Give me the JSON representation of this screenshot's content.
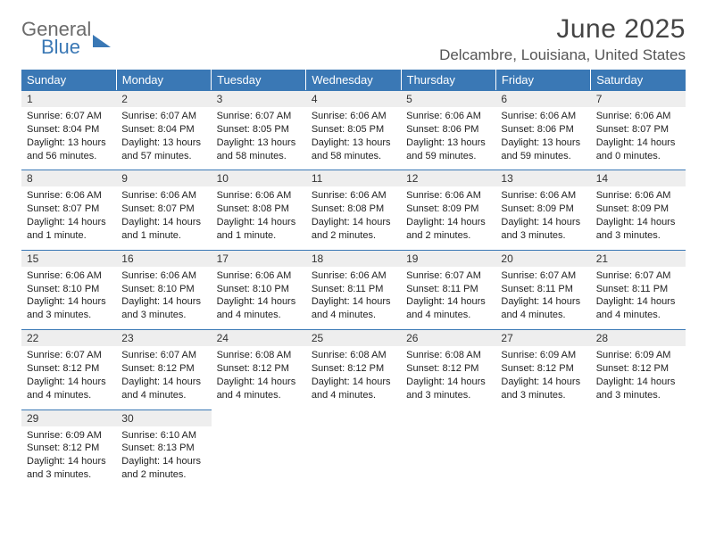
{
  "brand": {
    "line1": "General",
    "line2": "Blue"
  },
  "title": "June 2025",
  "location": "Delcambre, Louisiana, United States",
  "colors": {
    "header_bg": "#3a78b5",
    "header_text": "#ffffff",
    "daynum_bg": "#eeeeee",
    "daynum_border": "#3a78b5",
    "body_text": "#222222",
    "page_bg": "#ffffff",
    "logo_gray": "#6b6b6b",
    "logo_blue": "#3a78b5"
  },
  "layout": {
    "type": "table",
    "cols": 7,
    "rows": 5,
    "header_fontsize": 13,
    "daynum_fontsize": 12,
    "body_fontsize": 11,
    "title_fontsize": 30,
    "location_fontsize": 17
  },
  "weekdays": [
    "Sunday",
    "Monday",
    "Tuesday",
    "Wednesday",
    "Thursday",
    "Friday",
    "Saturday"
  ],
  "days": [
    {
      "n": "1",
      "sunrise": "Sunrise: 6:07 AM",
      "sunset": "Sunset: 8:04 PM",
      "daylight": "Daylight: 13 hours and 56 minutes."
    },
    {
      "n": "2",
      "sunrise": "Sunrise: 6:07 AM",
      "sunset": "Sunset: 8:04 PM",
      "daylight": "Daylight: 13 hours and 57 minutes."
    },
    {
      "n": "3",
      "sunrise": "Sunrise: 6:07 AM",
      "sunset": "Sunset: 8:05 PM",
      "daylight": "Daylight: 13 hours and 58 minutes."
    },
    {
      "n": "4",
      "sunrise": "Sunrise: 6:06 AM",
      "sunset": "Sunset: 8:05 PM",
      "daylight": "Daylight: 13 hours and 58 minutes."
    },
    {
      "n": "5",
      "sunrise": "Sunrise: 6:06 AM",
      "sunset": "Sunset: 8:06 PM",
      "daylight": "Daylight: 13 hours and 59 minutes."
    },
    {
      "n": "6",
      "sunrise": "Sunrise: 6:06 AM",
      "sunset": "Sunset: 8:06 PM",
      "daylight": "Daylight: 13 hours and 59 minutes."
    },
    {
      "n": "7",
      "sunrise": "Sunrise: 6:06 AM",
      "sunset": "Sunset: 8:07 PM",
      "daylight": "Daylight: 14 hours and 0 minutes."
    },
    {
      "n": "8",
      "sunrise": "Sunrise: 6:06 AM",
      "sunset": "Sunset: 8:07 PM",
      "daylight": "Daylight: 14 hours and 1 minute."
    },
    {
      "n": "9",
      "sunrise": "Sunrise: 6:06 AM",
      "sunset": "Sunset: 8:07 PM",
      "daylight": "Daylight: 14 hours and 1 minute."
    },
    {
      "n": "10",
      "sunrise": "Sunrise: 6:06 AM",
      "sunset": "Sunset: 8:08 PM",
      "daylight": "Daylight: 14 hours and 1 minute."
    },
    {
      "n": "11",
      "sunrise": "Sunrise: 6:06 AM",
      "sunset": "Sunset: 8:08 PM",
      "daylight": "Daylight: 14 hours and 2 minutes."
    },
    {
      "n": "12",
      "sunrise": "Sunrise: 6:06 AM",
      "sunset": "Sunset: 8:09 PM",
      "daylight": "Daylight: 14 hours and 2 minutes."
    },
    {
      "n": "13",
      "sunrise": "Sunrise: 6:06 AM",
      "sunset": "Sunset: 8:09 PM",
      "daylight": "Daylight: 14 hours and 3 minutes."
    },
    {
      "n": "14",
      "sunrise": "Sunrise: 6:06 AM",
      "sunset": "Sunset: 8:09 PM",
      "daylight": "Daylight: 14 hours and 3 minutes."
    },
    {
      "n": "15",
      "sunrise": "Sunrise: 6:06 AM",
      "sunset": "Sunset: 8:10 PM",
      "daylight": "Daylight: 14 hours and 3 minutes."
    },
    {
      "n": "16",
      "sunrise": "Sunrise: 6:06 AM",
      "sunset": "Sunset: 8:10 PM",
      "daylight": "Daylight: 14 hours and 3 minutes."
    },
    {
      "n": "17",
      "sunrise": "Sunrise: 6:06 AM",
      "sunset": "Sunset: 8:10 PM",
      "daylight": "Daylight: 14 hours and 4 minutes."
    },
    {
      "n": "18",
      "sunrise": "Sunrise: 6:06 AM",
      "sunset": "Sunset: 8:11 PM",
      "daylight": "Daylight: 14 hours and 4 minutes."
    },
    {
      "n": "19",
      "sunrise": "Sunrise: 6:07 AM",
      "sunset": "Sunset: 8:11 PM",
      "daylight": "Daylight: 14 hours and 4 minutes."
    },
    {
      "n": "20",
      "sunrise": "Sunrise: 6:07 AM",
      "sunset": "Sunset: 8:11 PM",
      "daylight": "Daylight: 14 hours and 4 minutes."
    },
    {
      "n": "21",
      "sunrise": "Sunrise: 6:07 AM",
      "sunset": "Sunset: 8:11 PM",
      "daylight": "Daylight: 14 hours and 4 minutes."
    },
    {
      "n": "22",
      "sunrise": "Sunrise: 6:07 AM",
      "sunset": "Sunset: 8:12 PM",
      "daylight": "Daylight: 14 hours and 4 minutes."
    },
    {
      "n": "23",
      "sunrise": "Sunrise: 6:07 AM",
      "sunset": "Sunset: 8:12 PM",
      "daylight": "Daylight: 14 hours and 4 minutes."
    },
    {
      "n": "24",
      "sunrise": "Sunrise: 6:08 AM",
      "sunset": "Sunset: 8:12 PM",
      "daylight": "Daylight: 14 hours and 4 minutes."
    },
    {
      "n": "25",
      "sunrise": "Sunrise: 6:08 AM",
      "sunset": "Sunset: 8:12 PM",
      "daylight": "Daylight: 14 hours and 4 minutes."
    },
    {
      "n": "26",
      "sunrise": "Sunrise: 6:08 AM",
      "sunset": "Sunset: 8:12 PM",
      "daylight": "Daylight: 14 hours and 3 minutes."
    },
    {
      "n": "27",
      "sunrise": "Sunrise: 6:09 AM",
      "sunset": "Sunset: 8:12 PM",
      "daylight": "Daylight: 14 hours and 3 minutes."
    },
    {
      "n": "28",
      "sunrise": "Sunrise: 6:09 AM",
      "sunset": "Sunset: 8:12 PM",
      "daylight": "Daylight: 14 hours and 3 minutes."
    },
    {
      "n": "29",
      "sunrise": "Sunrise: 6:09 AM",
      "sunset": "Sunset: 8:12 PM",
      "daylight": "Daylight: 14 hours and 3 minutes."
    },
    {
      "n": "30",
      "sunrise": "Sunrise: 6:10 AM",
      "sunset": "Sunset: 8:13 PM",
      "daylight": "Daylight: 14 hours and 2 minutes."
    }
  ]
}
